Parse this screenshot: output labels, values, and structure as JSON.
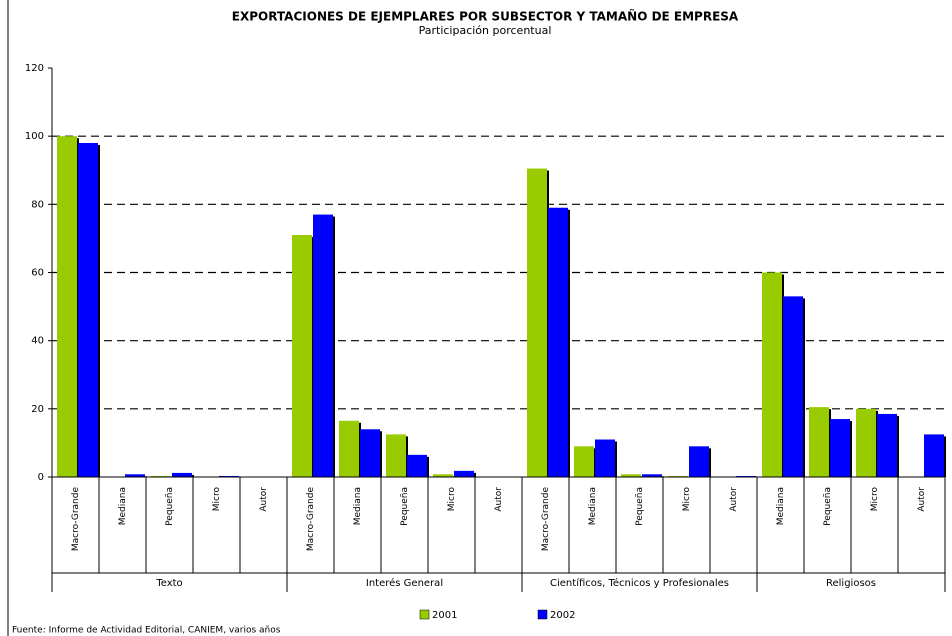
{
  "chart_data": {
    "type": "bar",
    "title": "EXPORTACIONES DE EJEMPLARES POR SUBSECTOR Y TAMAÑO DE EMPRESA",
    "subtitle": "Participación porcentual",
    "groups": [
      {
        "name": "Texto",
        "categories": [
          "Macro-Grande",
          "Mediana",
          "Pequeña",
          "Micro",
          "Autor"
        ]
      },
      {
        "name": "Interés General",
        "categories": [
          "Macro-Grande",
          "Mediana",
          "Pequeña",
          "Micro",
          "Autor"
        ]
      },
      {
        "name": "Científicos, Técnicos y Profesionales",
        "categories": [
          "Macro-Grande",
          "Mediana",
          "Pequeña",
          "Micro",
          "Autor"
        ]
      },
      {
        "name": "Religiosos",
        "categories": [
          "Mediana",
          "Pequeña",
          "Micro",
          "Autor"
        ]
      }
    ],
    "series": [
      {
        "name": "2001",
        "color": "#99cc00",
        "values": [
          100,
          0,
          0.3,
          0,
          0,
          71,
          16.5,
          12.5,
          0.8,
          0,
          90.5,
          9,
          0.8,
          0.3,
          0,
          60,
          20.5,
          20,
          0
        ]
      },
      {
        "name": "2002",
        "color": "#0000ff",
        "values": [
          98,
          0.8,
          1.2,
          0.3,
          0,
          77,
          14,
          6.5,
          1.8,
          0,
          79,
          11,
          0.8,
          9,
          0.3,
          53,
          17,
          18.5,
          12.5
        ]
      }
    ],
    "ylim": [
      0,
      120
    ],
    "yticks": [
      0,
      20,
      40,
      60,
      80,
      100,
      120
    ],
    "grid": true,
    "source": "Fuente: Informe de Actividad Editorial, CANIEM, varios años"
  }
}
